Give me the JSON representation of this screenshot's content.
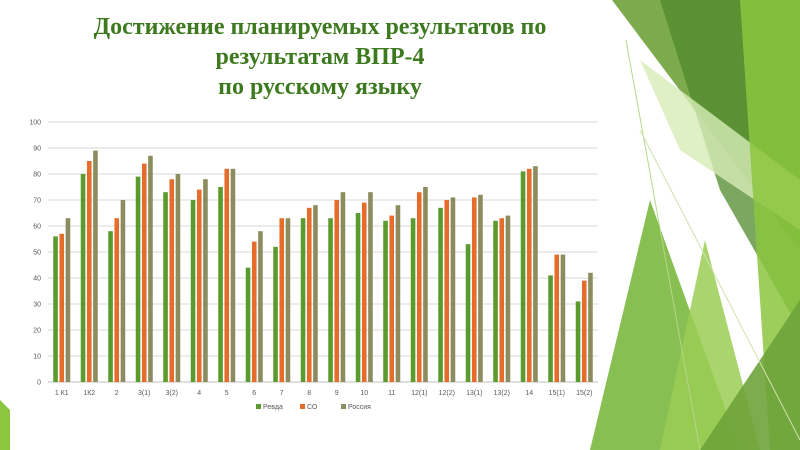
{
  "slide": {
    "title_lines": [
      "Достижение планируемых результатов по",
      "результатам ВПР-4",
      "по русскому языку"
    ],
    "accent_color": "#3d7a1f"
  },
  "chart_data": {
    "type": "bar",
    "categories": [
      "1 К1",
      "1К2",
      "2",
      "3(1)",
      "3(2)",
      "4",
      "5",
      "6",
      "7",
      "8",
      "9",
      "10",
      "11",
      "12(1)",
      "12(2)",
      "13(1)",
      "13(2)",
      "14",
      "15(1)",
      "15(2)"
    ],
    "series": [
      {
        "name": "Ревда",
        "color": "#5b9b2e",
        "values": [
          56,
          80,
          58,
          79,
          73,
          70,
          75,
          44,
          52,
          63,
          63,
          65,
          62,
          63,
          67,
          53,
          62,
          81,
          41,
          31
        ]
      },
      {
        "name": "СО",
        "color": "#e66c2c",
        "values": [
          57,
          85,
          63,
          84,
          78,
          74,
          82,
          54,
          63,
          67,
          70,
          69,
          64,
          73,
          70,
          71,
          63,
          82,
          49,
          39
        ]
      },
      {
        "name": "Россия",
        "color": "#8c8c5e",
        "values": [
          63,
          89,
          70,
          87,
          80,
          78,
          82,
          58,
          63,
          68,
          73,
          73,
          68,
          75,
          71,
          72,
          64,
          83,
          49,
          42
        ]
      }
    ],
    "ylim": [
      0,
      100
    ],
    "yticks": [
      0,
      10,
      20,
      30,
      40,
      50,
      60,
      70,
      80,
      90,
      100
    ],
    "grid": true,
    "legend_position": "bottom"
  }
}
